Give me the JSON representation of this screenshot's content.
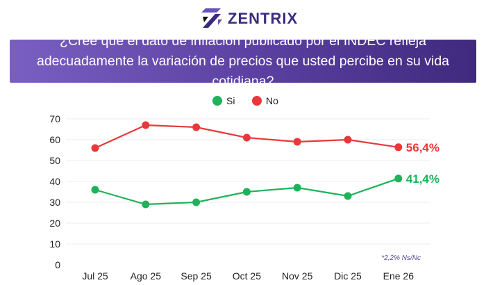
{
  "brand": {
    "name": "ZENTRIX",
    "color": "#3b2a80"
  },
  "title": "¿Cree que el dato de inflación publicado por el INDEC refleja adecuadamente la variación de precios que usted percibe en su vida cotidiana?",
  "chart_data": {
    "type": "line",
    "title": "¿Cree que el dato de inflación publicado por el INDEC refleja adecuadamente la variación de precios que usted percibe en su vida cotidiana?",
    "categories": [
      "Jul 25",
      "Ago 25",
      "Sep 25",
      "Oct 25",
      "Nov 25",
      "Dic 25",
      "Ene 26"
    ],
    "ylim": [
      0,
      70
    ],
    "yticks": [
      0,
      10,
      20,
      30,
      40,
      50,
      60,
      70
    ],
    "grid": true,
    "legend_position": "top",
    "series": [
      {
        "name": "Si",
        "color": "#1fb25a",
        "values": [
          36,
          29,
          30,
          35,
          37,
          33,
          41.4
        ],
        "end_label": "41,4%"
      },
      {
        "name": "No",
        "color": "#e8383b",
        "values": [
          56,
          67,
          66,
          61,
          59,
          60,
          56.4
        ],
        "end_label": "56,4%"
      }
    ],
    "note": "*2,2% Ns/Nc"
  }
}
